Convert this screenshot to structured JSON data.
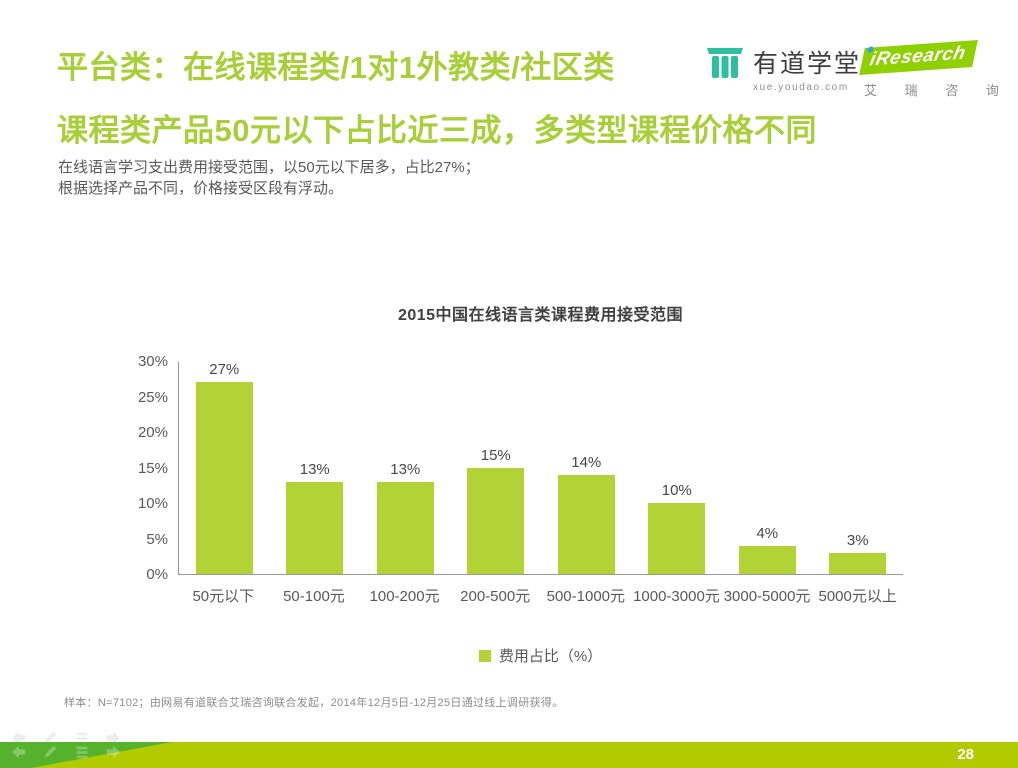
{
  "header": {
    "title_line1": "平台类：在线课程类/1对1外教类/社区类",
    "title_line2": "课程类产品50元以下占比近三成，多类型课程价格不同",
    "accent_color": "#a8cf38"
  },
  "intro": {
    "line1": "在线语言学习支出费用接受范围，以50元以下居多，占比27%；",
    "line2": "根据选择产品不同，价格接受区段有浮动。"
  },
  "logos": {
    "youdao": {
      "name": "有道学堂",
      "url_text": "xue.youdao.com",
      "icon": "pillar-icon",
      "icon_color": "#2ebfa0"
    },
    "iresearch": {
      "brand": "iResearch",
      "subtext": "艾 瑞 咨 询",
      "banner_color": "#8ed000",
      "dot_color": "#2ba8e0"
    }
  },
  "chart_data": {
    "type": "bar",
    "title": "2015中国在线语言类课程费用接受范围",
    "categories": [
      "50元以下",
      "50-100元",
      "100-200元",
      "200-500元",
      "500-1000元",
      "1000-3000元",
      "3000-5000元",
      "5000元以上"
    ],
    "values": [
      27,
      13,
      13,
      15,
      14,
      10,
      4,
      3
    ],
    "value_labels": [
      "27%",
      "13%",
      "13%",
      "15%",
      "14%",
      "10%",
      "4%",
      "3%"
    ],
    "ylim": [
      0,
      30
    ],
    "yticks": [
      0,
      5,
      10,
      15,
      20,
      25,
      30
    ],
    "ytick_labels": [
      "0%",
      "5%",
      "10%",
      "15%",
      "20%",
      "25%",
      "30%"
    ],
    "bar_color": "#b2d235",
    "grid": false,
    "legend_position": "bottom",
    "legend": [
      {
        "label": "费用占比（%）",
        "color": "#b2d235"
      }
    ]
  },
  "footnote": "样本：N=7102；由网易有道联合艾瑞咨询联合发起，2014年12月5日-12月25日通过线上调研获得。",
  "footer": {
    "page_number": "28",
    "bar_color": "#b1cb00",
    "accent_dark": "#56b22c"
  }
}
